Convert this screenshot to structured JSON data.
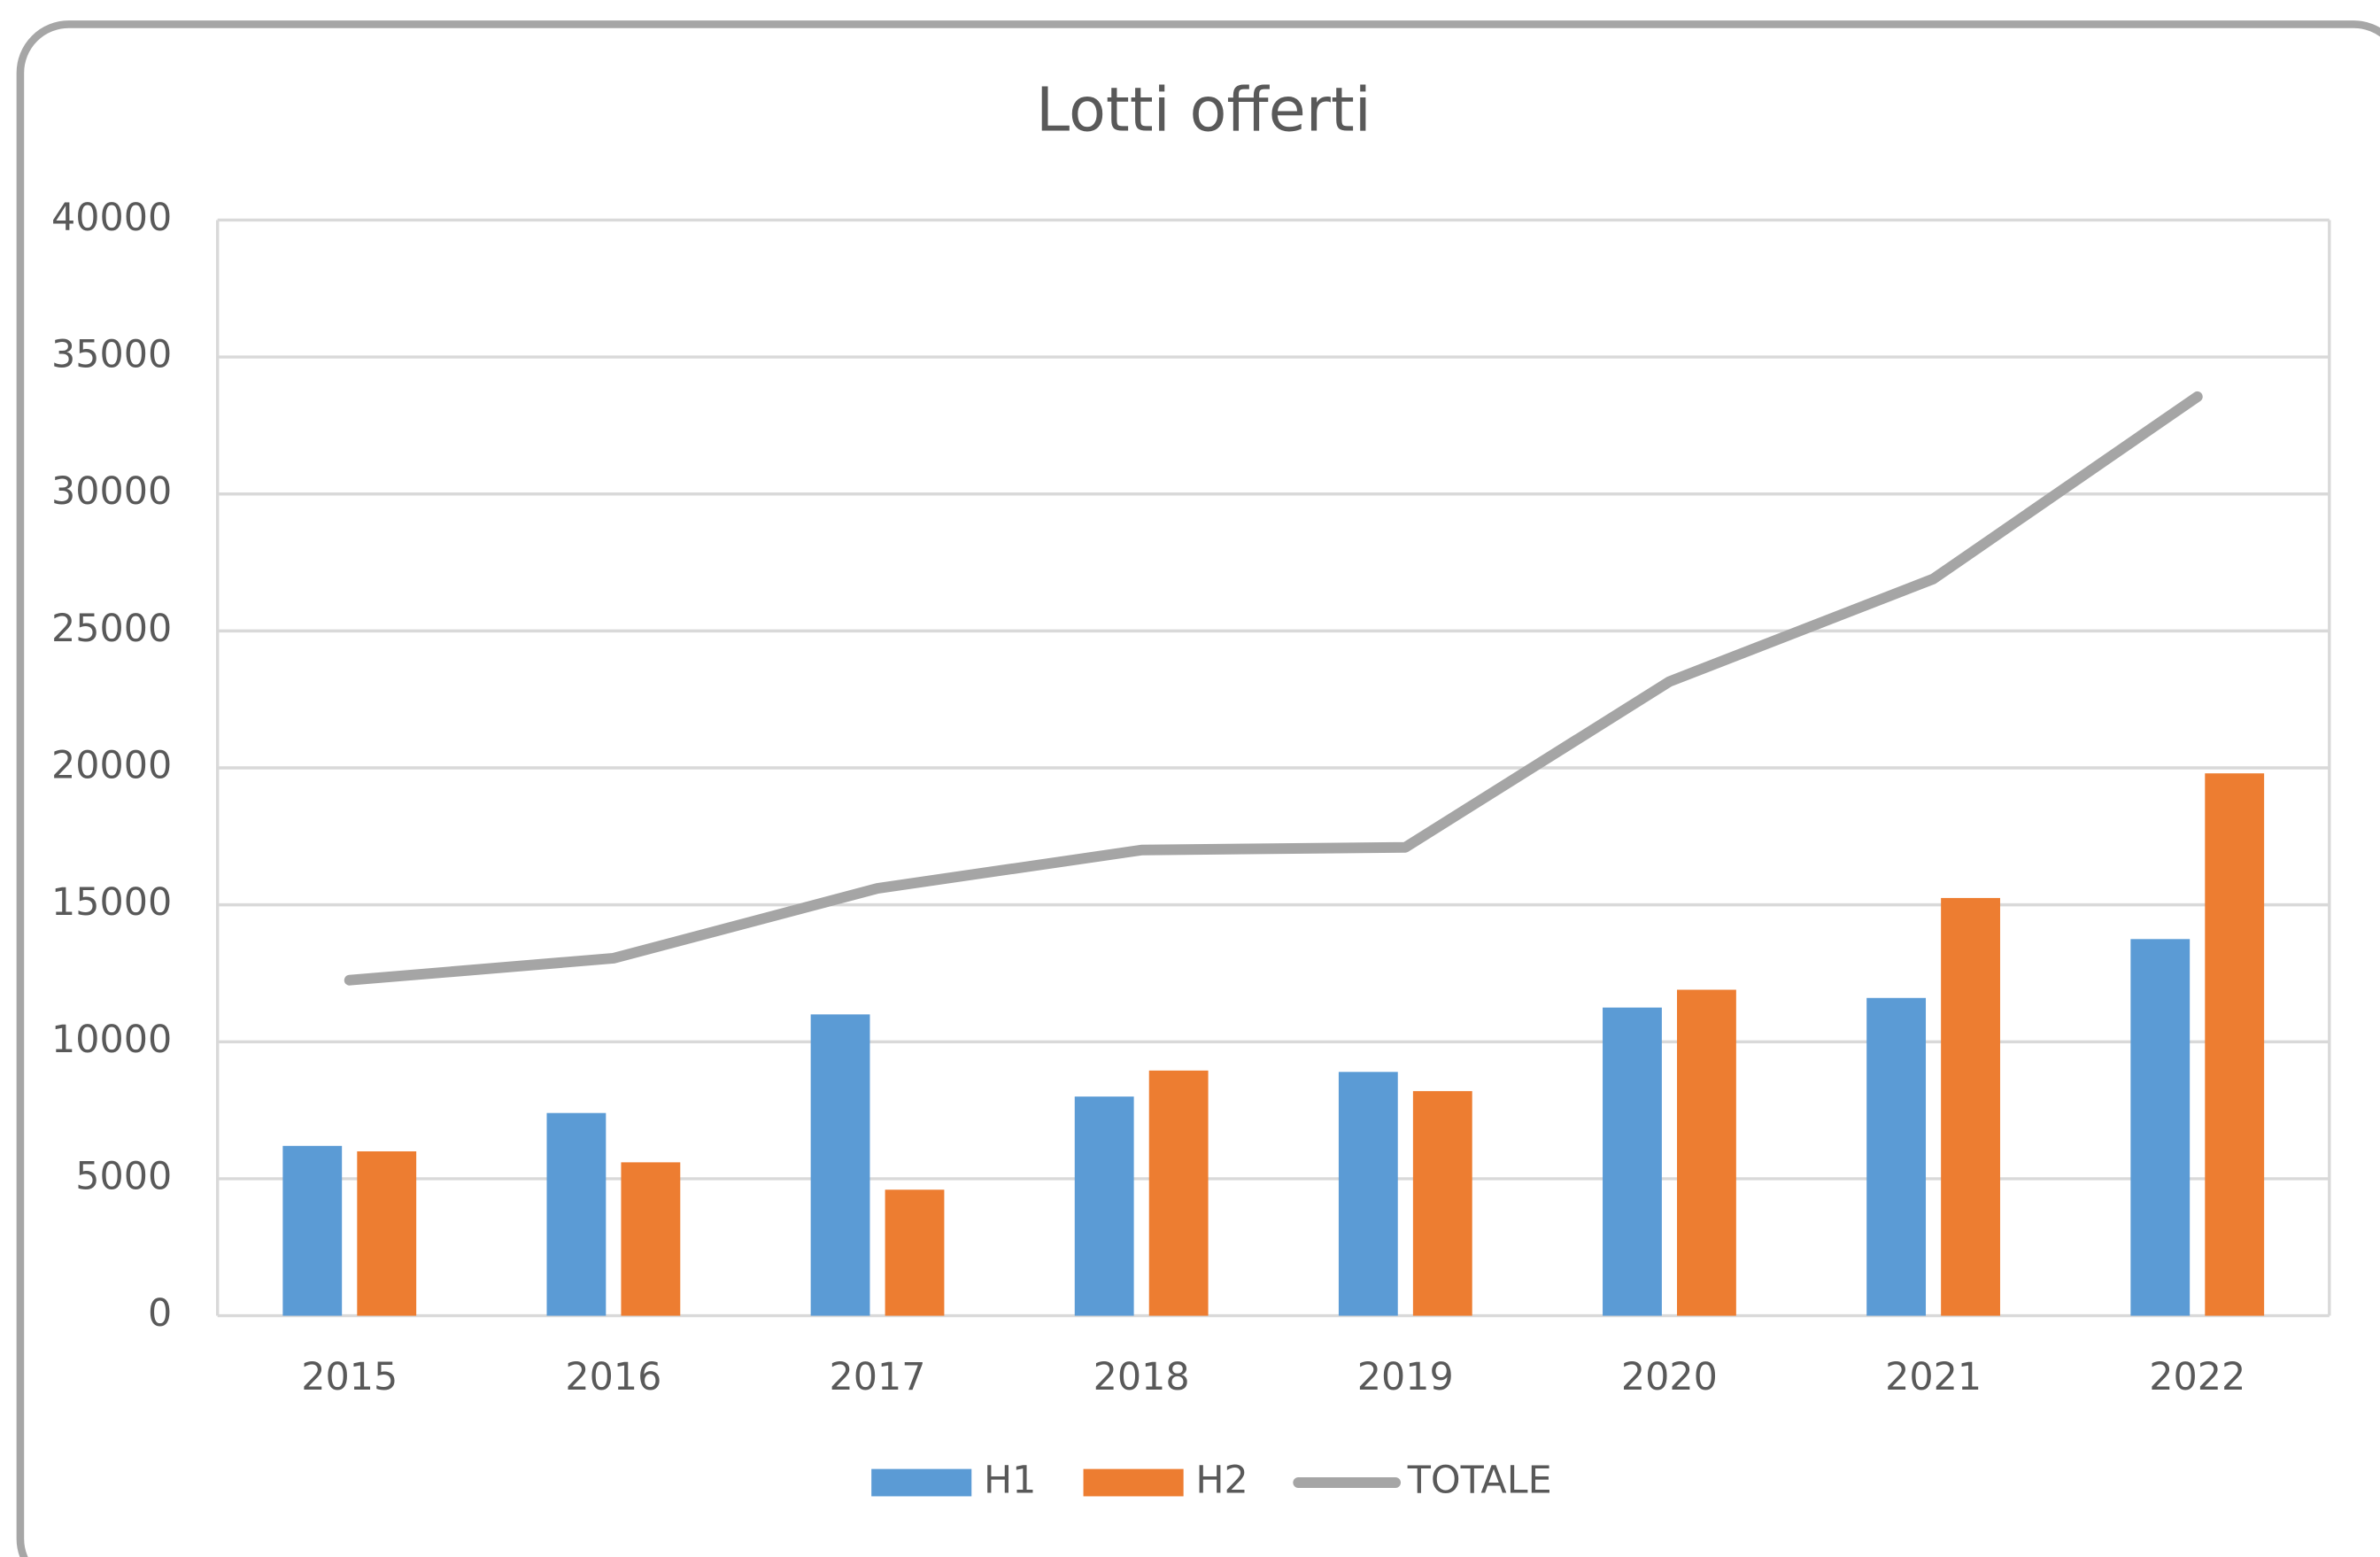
{
  "chart_data": {
    "type": "bar",
    "title": "Lotti offerti",
    "categories": [
      "2015",
      "2016",
      "2017",
      "2018",
      "2019",
      "2020",
      "2021",
      "2022"
    ],
    "series": [
      {
        "name": "H1",
        "color": "#5b9bd5",
        "values": [
          6200,
          7400,
          11000,
          8000,
          8900,
          11250,
          11600,
          13750
        ]
      },
      {
        "name": "H2",
        "color": "#ed7d31",
        "values": [
          6000,
          5600,
          4600,
          8950,
          8200,
          11900,
          15250,
          19800
        ]
      },
      {
        "name": "TOTALE",
        "type": "line",
        "color": "#a5a5a5",
        "values": [
          12250,
          13050,
          15600,
          17000,
          17100,
          23150,
          26900,
          33550
        ]
      }
    ],
    "ylim": [
      0,
      40000
    ],
    "yticks": [
      0,
      5000,
      10000,
      15000,
      20000,
      25000,
      30000,
      35000,
      40000
    ],
    "grid": true,
    "legend": "bottom"
  }
}
